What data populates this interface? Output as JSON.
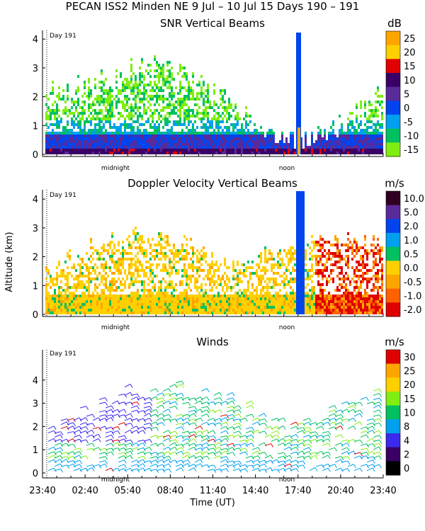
{
  "header": "PECAN ISS2 Minden NE   9 Jul – 10 Jul 15 Days 190 – 191",
  "x_axis_label": "Time (UT)",
  "y_axis_label": "Altitude (km)",
  "day_marker": "Day 191",
  "time_markers": [
    "midnight",
    "noon"
  ],
  "chart_data": [
    {
      "type": "heatmap",
      "title": "SNR Vertical Beams",
      "ylabel": "Altitude (km)",
      "yticks": [
        "0",
        "1",
        "2",
        "3",
        "4"
      ],
      "ylim": [
        0,
        4.2
      ],
      "colorbar_unit": "dB",
      "colorbar_labels": [
        "25",
        "20",
        "15",
        "10",
        "5",
        "0",
        "-5",
        "-10",
        "-15"
      ],
      "colors": [
        "#ffa500",
        "#ffd000",
        "#e00000",
        "#3a0066",
        "#5a2a9a",
        "#0044ee",
        "#00a0ee",
        "#00c060",
        "#80ee10"
      ]
    },
    {
      "type": "heatmap",
      "title": "Doppler Velocity Vertical Beams",
      "ylabel": "Altitude (km)",
      "yticks": [
        "0",
        "1",
        "2",
        "3",
        "4"
      ],
      "ylim": [
        0,
        4.2
      ],
      "colorbar_unit": "m/s",
      "colorbar_labels": [
        "10.0",
        "5.0",
        "2.0",
        "1.0",
        "0.5",
        "0.0",
        "-0.5",
        "-1.0",
        "-2.0"
      ],
      "colors": [
        "#300020",
        "#5a2a9a",
        "#0044ee",
        "#00a0ee",
        "#00c060",
        "#ffd000",
        "#ffa500",
        "#ff6000",
        "#e00000"
      ]
    },
    {
      "type": "scatter",
      "title": "Winds",
      "ylabel": "Altitude (km)",
      "yticks": [
        "0",
        "1",
        "2",
        "3",
        "4"
      ],
      "ylim": [
        0,
        4.8
      ],
      "xlabel": "Time (UT)",
      "xticks": [
        "23:40",
        "02:40",
        "05:40",
        "08:40",
        "11:40",
        "14:40",
        "17:40",
        "20:40",
        "23:40"
      ],
      "colorbar_unit": "m/s",
      "colorbar_labels": [
        "30",
        "25",
        "20",
        "15",
        "10",
        "8",
        "4",
        "2",
        "0"
      ],
      "colors": [
        "#e00000",
        "#ffa500",
        "#ffd000",
        "#80ee10",
        "#00c060",
        "#00a0ee",
        "#3a2aee",
        "#3a0066",
        "#000000"
      ]
    }
  ]
}
